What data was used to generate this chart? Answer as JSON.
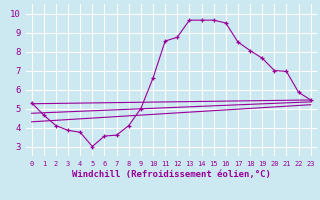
{
  "background_color": "#cce8f0",
  "grid_color": "#ffffff",
  "line_color": "#990099",
  "marker": "+",
  "xlabel": "Windchill (Refroidissement éolien,°C)",
  "xlim": [
    -0.5,
    23.5
  ],
  "ylim": [
    2.5,
    10.5
  ],
  "yticks": [
    3,
    4,
    5,
    6,
    7,
    8,
    9,
    10
  ],
  "xticks": [
    0,
    1,
    2,
    3,
    4,
    5,
    6,
    7,
    8,
    9,
    10,
    11,
    12,
    13,
    14,
    15,
    16,
    17,
    18,
    19,
    20,
    21,
    22,
    23
  ],
  "main_curve": {
    "x": [
      0,
      1,
      2,
      3,
      4,
      5,
      6,
      7,
      8,
      9,
      10,
      11,
      12,
      13,
      14,
      15,
      16,
      17,
      18,
      19,
      20,
      21,
      22,
      23
    ],
    "y": [
      5.3,
      4.65,
      4.1,
      3.85,
      3.75,
      3.0,
      3.55,
      3.6,
      4.1,
      5.0,
      6.6,
      8.55,
      8.75,
      9.65,
      9.65,
      9.65,
      9.5,
      8.5,
      8.05,
      7.65,
      7.0,
      6.95,
      5.85,
      5.45
    ]
  },
  "straight_lines": [
    {
      "x": [
        0,
        23
      ],
      "y": [
        4.3,
        5.2
      ]
    },
    {
      "x": [
        0,
        23
      ],
      "y": [
        4.75,
        5.35
      ]
    },
    {
      "x": [
        0,
        23
      ],
      "y": [
        5.25,
        5.45
      ]
    }
  ]
}
